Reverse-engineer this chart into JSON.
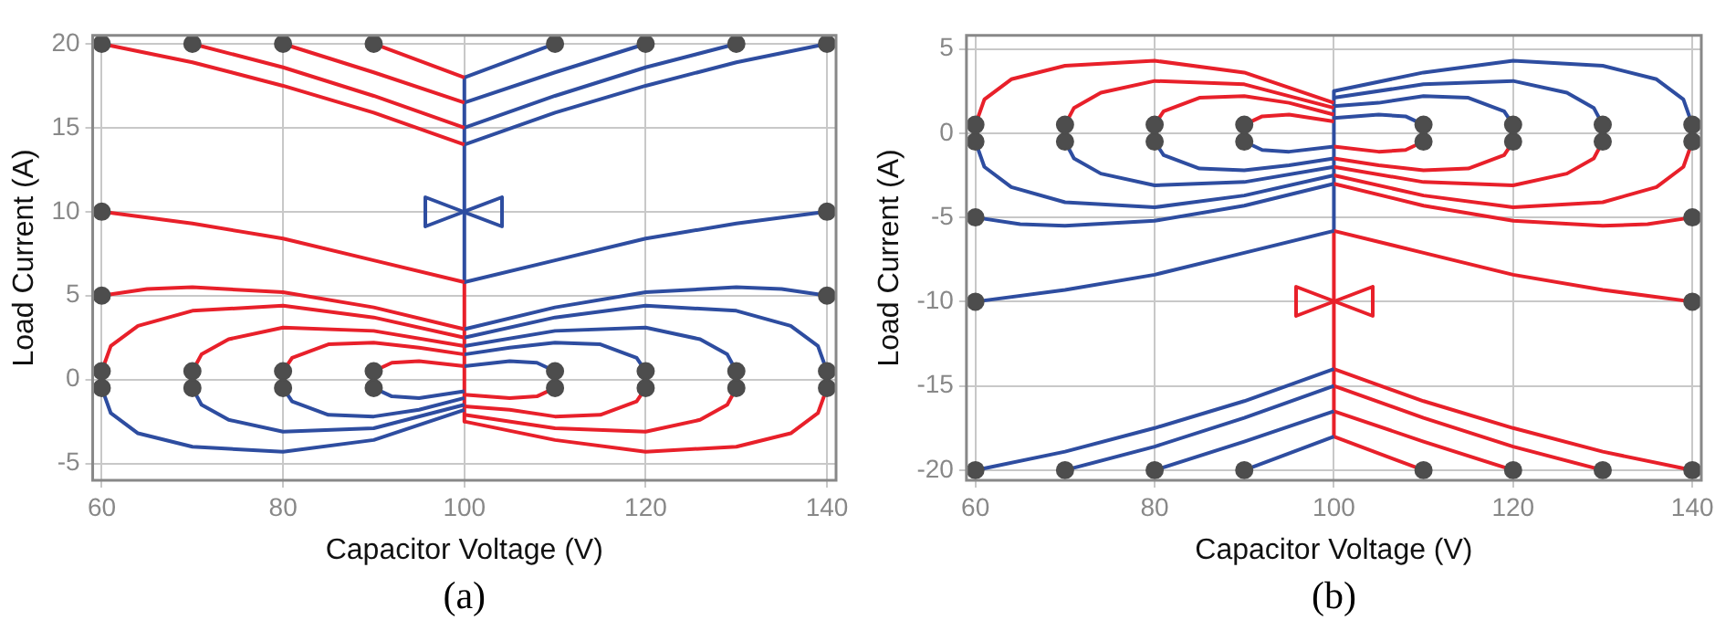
{
  "chart_data": [
    {
      "type": "line",
      "xlabel": "Capacitor Voltage (V)",
      "ylabel": "Load Current (A)",
      "annotations": [
        "(a)"
      ],
      "xlim": [
        59,
        141
      ],
      "xticks": [
        60,
        80,
        100,
        120,
        140
      ],
      "ylim": [
        -6,
        20.5
      ],
      "yticks": [
        -5,
        0,
        5,
        10,
        15,
        20
      ],
      "grid": true,
      "legend": false,
      "line_style": "solid",
      "series": [
        {
          "type": "scatter",
          "marker": "circle",
          "color": "#4d4d4d",
          "x": [
            60,
            70,
            80,
            90,
            110,
            120,
            130,
            140,
            60,
            140,
            60,
            140,
            60,
            70,
            80,
            90,
            110,
            120,
            130,
            140,
            60,
            70,
            80,
            90,
            110,
            120,
            130,
            140
          ],
          "values": [
            20,
            20,
            20,
            20,
            20,
            20,
            20,
            20,
            10,
            10,
            5,
            5,
            0.5,
            0.5,
            0.5,
            0.5,
            0.5,
            0.5,
            0.5,
            0.5,
            -0.5,
            -0.5,
            -0.5,
            -0.5,
            -0.5,
            -0.5,
            -0.5,
            -0.5
          ]
        },
        {
          "color": "#e8202a",
          "x": [
            60,
            70,
            80,
            90,
            100
          ],
          "values": [
            20,
            18.9,
            17.5,
            15.9,
            14
          ]
        },
        {
          "color": "#e8202a",
          "x": [
            70,
            80,
            90,
            100
          ],
          "values": [
            20,
            18.6,
            16.9,
            15
          ]
        },
        {
          "color": "#e8202a",
          "x": [
            80,
            90,
            100
          ],
          "values": [
            20,
            18.3,
            16.5
          ]
        },
        {
          "color": "#e8202a",
          "x": [
            90,
            100
          ],
          "values": [
            20,
            18
          ]
        },
        {
          "color": "#2e4da0",
          "x": [
            110,
            100
          ],
          "values": [
            20,
            18
          ]
        },
        {
          "color": "#2e4da0",
          "x": [
            120,
            110,
            100
          ],
          "values": [
            20,
            18.3,
            16.5
          ]
        },
        {
          "color": "#2e4da0",
          "x": [
            130,
            120,
            110,
            100
          ],
          "values": [
            20,
            18.6,
            16.9,
            15
          ]
        },
        {
          "color": "#2e4da0",
          "x": [
            140,
            130,
            120,
            110,
            100
          ],
          "values": [
            20,
            18.9,
            17.5,
            15.9,
            14
          ]
        },
        {
          "color": "#e8202a",
          "x": [
            60,
            70,
            80,
            90,
            100
          ],
          "values": [
            10,
            9.3,
            8.4,
            7.1,
            5.8
          ]
        },
        {
          "color": "#2e4da0",
          "x": [
            140,
            130,
            120,
            110,
            100
          ],
          "values": [
            10,
            9.3,
            8.4,
            7.1,
            5.8
          ]
        },
        {
          "color": "#e8202a",
          "x": [
            60,
            65,
            70,
            80,
            90,
            100
          ],
          "values": [
            5,
            5.4,
            5.5,
            5.2,
            4.3,
            3
          ]
        },
        {
          "color": "#2e4da0",
          "x": [
            140,
            135,
            130,
            120,
            110,
            100
          ],
          "values": [
            5,
            5.4,
            5.5,
            5.2,
            4.3,
            3
          ]
        },
        {
          "color": "#e8202a",
          "x": [
            60,
            61,
            64,
            70,
            80,
            90,
            100
          ],
          "values": [
            0.5,
            2,
            3.2,
            4.1,
            4.4,
            3.7,
            2.5
          ]
        },
        {
          "color": "#e8202a",
          "x": [
            70,
            71,
            74,
            80,
            90,
            100
          ],
          "values": [
            0.5,
            1.5,
            2.4,
            3.1,
            2.9,
            2
          ]
        },
        {
          "color": "#e8202a",
          "x": [
            80,
            81,
            85,
            90,
            95,
            100
          ],
          "values": [
            0.5,
            1.3,
            2.1,
            2.2,
            1.9,
            1.5
          ]
        },
        {
          "color": "#e8202a",
          "x": [
            90,
            92,
            95,
            100
          ],
          "values": [
            0.5,
            1,
            1.1,
            0.8
          ]
        },
        {
          "color": "#2e4da0",
          "x": [
            140,
            139,
            136,
            130,
            120,
            110,
            100
          ],
          "values": [
            0.5,
            2,
            3.2,
            4.1,
            4.4,
            3.7,
            2.5
          ]
        },
        {
          "color": "#2e4da0",
          "x": [
            130,
            129,
            126,
            120,
            110,
            100
          ],
          "values": [
            0.5,
            1.5,
            2.4,
            3.1,
            2.9,
            2
          ]
        },
        {
          "color": "#2e4da0",
          "x": [
            120,
            119,
            115,
            110,
            105,
            100
          ],
          "values": [
            0.5,
            1.3,
            2.1,
            2.2,
            1.9,
            1.5
          ]
        },
        {
          "color": "#2e4da0",
          "x": [
            110,
            108,
            105,
            100
          ],
          "values": [
            0.5,
            1,
            1.1,
            0.8
          ]
        },
        {
          "color": "#2e4da0",
          "x": [
            60,
            61,
            64,
            70,
            80,
            90,
            100
          ],
          "values": [
            -0.5,
            -2,
            -3.2,
            -4,
            -4.3,
            -3.6,
            -1.8
          ]
        },
        {
          "color": "#2e4da0",
          "x": [
            70,
            71,
            74,
            80,
            90,
            100
          ],
          "values": [
            -0.5,
            -1.5,
            -2.4,
            -3.1,
            -2.9,
            -1.5
          ]
        },
        {
          "color": "#2e4da0",
          "x": [
            80,
            81,
            85,
            90,
            95,
            100
          ],
          "values": [
            -0.5,
            -1.3,
            -2.1,
            -2.2,
            -1.8,
            -1.1
          ]
        },
        {
          "color": "#2e4da0",
          "x": [
            90,
            92,
            95,
            100
          ],
          "values": [
            -0.5,
            -1,
            -1.1,
            -0.7
          ]
        },
        {
          "color": "#e8202a",
          "x": [
            140,
            139,
            136,
            130,
            120,
            110,
            100
          ],
          "values": [
            -0.5,
            -2,
            -3.2,
            -4,
            -4.3,
            -3.6,
            -2.5
          ]
        },
        {
          "color": "#e8202a",
          "x": [
            130,
            129,
            126,
            120,
            110,
            100
          ],
          "values": [
            -0.5,
            -1.5,
            -2.4,
            -3.1,
            -2.9,
            -2.1
          ]
        },
        {
          "color": "#e8202a",
          "x": [
            120,
            119,
            115,
            110,
            105,
            100
          ],
          "values": [
            -0.5,
            -1.3,
            -2.1,
            -2.2,
            -1.8,
            -1.6
          ]
        },
        {
          "color": "#e8202a",
          "x": [
            110,
            108,
            105,
            100
          ],
          "values": [
            -0.5,
            -1,
            -1.1,
            -0.9
          ]
        },
        {
          "color": "#2e4da0",
          "x": [
            100,
            100
          ],
          "values": [
            18,
            5.8
          ]
        },
        {
          "color": "#e8202a",
          "x": [
            100,
            100
          ],
          "values": [
            5.8,
            -2.5
          ]
        }
      ]
    },
    {
      "type": "line",
      "xlabel": "Capacitor Voltage (V)",
      "ylabel": "Load Current (A)",
      "annotations": [
        "(b)"
      ],
      "xlim": [
        59,
        141
      ],
      "xticks": [
        60,
        80,
        100,
        120,
        140
      ],
      "ylim": [
        -20.6,
        5.8
      ],
      "yticks": [
        -20,
        -15,
        -10,
        -5,
        0,
        5
      ],
      "grid": true,
      "legend": false,
      "line_style": "solid",
      "series": [
        {
          "type": "scatter",
          "marker": "circle",
          "color": "#4d4d4d",
          "x": [
            60,
            70,
            80,
            90,
            110,
            120,
            130,
            140,
            60,
            140,
            60,
            140,
            60,
            70,
            80,
            90,
            110,
            120,
            130,
            140,
            60,
            70,
            80,
            90,
            110,
            120,
            130,
            140
          ],
          "values": [
            -20,
            -20,
            -20,
            -20,
            -20,
            -20,
            -20,
            -20,
            -10,
            -10,
            -5,
            -5,
            -0.5,
            -0.5,
            -0.5,
            -0.5,
            -0.5,
            -0.5,
            -0.5,
            -0.5,
            0.5,
            0.5,
            0.5,
            0.5,
            0.5,
            0.5,
            0.5,
            0.5
          ]
        },
        {
          "color": "#2e4da0",
          "x": [
            60,
            70,
            80,
            90,
            100
          ],
          "values": [
            -20,
            -18.9,
            -17.5,
            -15.9,
            -14
          ]
        },
        {
          "color": "#2e4da0",
          "x": [
            70,
            80,
            90,
            100
          ],
          "values": [
            -20,
            -18.6,
            -16.9,
            -15
          ]
        },
        {
          "color": "#2e4da0",
          "x": [
            80,
            90,
            100
          ],
          "values": [
            -20,
            -18.3,
            -16.5
          ]
        },
        {
          "color": "#2e4da0",
          "x": [
            90,
            100
          ],
          "values": [
            -20,
            -18
          ]
        },
        {
          "color": "#e8202a",
          "x": [
            110,
            100
          ],
          "values": [
            -20,
            -18
          ]
        },
        {
          "color": "#e8202a",
          "x": [
            120,
            110,
            100
          ],
          "values": [
            -20,
            -18.3,
            -16.5
          ]
        },
        {
          "color": "#e8202a",
          "x": [
            130,
            120,
            110,
            100
          ],
          "values": [
            -20,
            -18.6,
            -16.9,
            -15
          ]
        },
        {
          "color": "#e8202a",
          "x": [
            140,
            130,
            120,
            110,
            100
          ],
          "values": [
            -20,
            -18.9,
            -17.5,
            -15.9,
            -14
          ]
        },
        {
          "color": "#2e4da0",
          "x": [
            60,
            70,
            80,
            90,
            100
          ],
          "values": [
            -10,
            -9.3,
            -8.4,
            -7.1,
            -5.8
          ]
        },
        {
          "color": "#e8202a",
          "x": [
            140,
            130,
            120,
            110,
            100
          ],
          "values": [
            -10,
            -9.3,
            -8.4,
            -7.1,
            -5.8
          ]
        },
        {
          "color": "#2e4da0",
          "x": [
            60,
            65,
            70,
            80,
            90,
            100
          ],
          "values": [
            -5,
            -5.4,
            -5.5,
            -5.2,
            -4.3,
            -3
          ]
        },
        {
          "color": "#e8202a",
          "x": [
            140,
            135,
            130,
            120,
            110,
            100
          ],
          "values": [
            -5,
            -5.4,
            -5.5,
            -5.2,
            -4.3,
            -3
          ]
        },
        {
          "color": "#2e4da0",
          "x": [
            60,
            61,
            64,
            70,
            80,
            90,
            100
          ],
          "values": [
            -0.5,
            -2,
            -3.2,
            -4.1,
            -4.4,
            -3.7,
            -2.5
          ]
        },
        {
          "color": "#2e4da0",
          "x": [
            70,
            71,
            74,
            80,
            90,
            100
          ],
          "values": [
            -0.5,
            -1.5,
            -2.4,
            -3.1,
            -2.9,
            -2
          ]
        },
        {
          "color": "#2e4da0",
          "x": [
            80,
            81,
            85,
            90,
            95,
            100
          ],
          "values": [
            -0.5,
            -1.3,
            -2.1,
            -2.2,
            -1.9,
            -1.5
          ]
        },
        {
          "color": "#2e4da0",
          "x": [
            90,
            92,
            95,
            100
          ],
          "values": [
            -0.5,
            -1,
            -1.1,
            -0.8
          ]
        },
        {
          "color": "#e8202a",
          "x": [
            140,
            139,
            136,
            130,
            120,
            110,
            100
          ],
          "values": [
            -0.5,
            -2,
            -3.2,
            -4.1,
            -4.4,
            -3.7,
            -2.5
          ]
        },
        {
          "color": "#e8202a",
          "x": [
            130,
            129,
            126,
            120,
            110,
            100
          ],
          "values": [
            -0.5,
            -1.5,
            -2.4,
            -3.1,
            -2.9,
            -2
          ]
        },
        {
          "color": "#e8202a",
          "x": [
            120,
            119,
            115,
            110,
            105,
            100
          ],
          "values": [
            -0.5,
            -1.3,
            -2.1,
            -2.2,
            -1.9,
            -1.5
          ]
        },
        {
          "color": "#e8202a",
          "x": [
            110,
            108,
            105,
            100
          ],
          "values": [
            -0.5,
            -1,
            -1.1,
            -0.8
          ]
        },
        {
          "color": "#e8202a",
          "x": [
            60,
            61,
            64,
            70,
            80,
            90,
            100
          ],
          "values": [
            0.5,
            2,
            3.2,
            4,
            4.3,
            3.6,
            1.8
          ]
        },
        {
          "color": "#e8202a",
          "x": [
            70,
            71,
            74,
            80,
            90,
            100
          ],
          "values": [
            0.5,
            1.5,
            2.4,
            3.1,
            2.9,
            1.5
          ]
        },
        {
          "color": "#e8202a",
          "x": [
            80,
            81,
            85,
            90,
            95,
            100
          ],
          "values": [
            0.5,
            1.3,
            2.1,
            2.2,
            1.8,
            1.1
          ]
        },
        {
          "color": "#e8202a",
          "x": [
            90,
            92,
            95,
            100
          ],
          "values": [
            0.5,
            1,
            1.1,
            0.7
          ]
        },
        {
          "color": "#2e4da0",
          "x": [
            140,
            139,
            136,
            130,
            120,
            110,
            100
          ],
          "values": [
            0.5,
            2,
            3.2,
            4,
            4.3,
            3.6,
            2.5
          ]
        },
        {
          "color": "#2e4da0",
          "x": [
            130,
            129,
            126,
            120,
            110,
            100
          ],
          "values": [
            0.5,
            1.5,
            2.4,
            3.1,
            2.9,
            2.1
          ]
        },
        {
          "color": "#2e4da0",
          "x": [
            120,
            119,
            115,
            110,
            105,
            100
          ],
          "values": [
            0.5,
            1.3,
            2.1,
            2.2,
            1.8,
            1.6
          ]
        },
        {
          "color": "#2e4da0",
          "x": [
            110,
            108,
            105,
            100
          ],
          "values": [
            0.5,
            1,
            1.1,
            0.9
          ]
        },
        {
          "color": "#2e4da0",
          "x": [
            100,
            100
          ],
          "values": [
            2.5,
            -5.8
          ]
        },
        {
          "color": "#e8202a",
          "x": [
            100,
            100
          ],
          "values": [
            -5.8,
            -18
          ]
        }
      ]
    }
  ]
}
